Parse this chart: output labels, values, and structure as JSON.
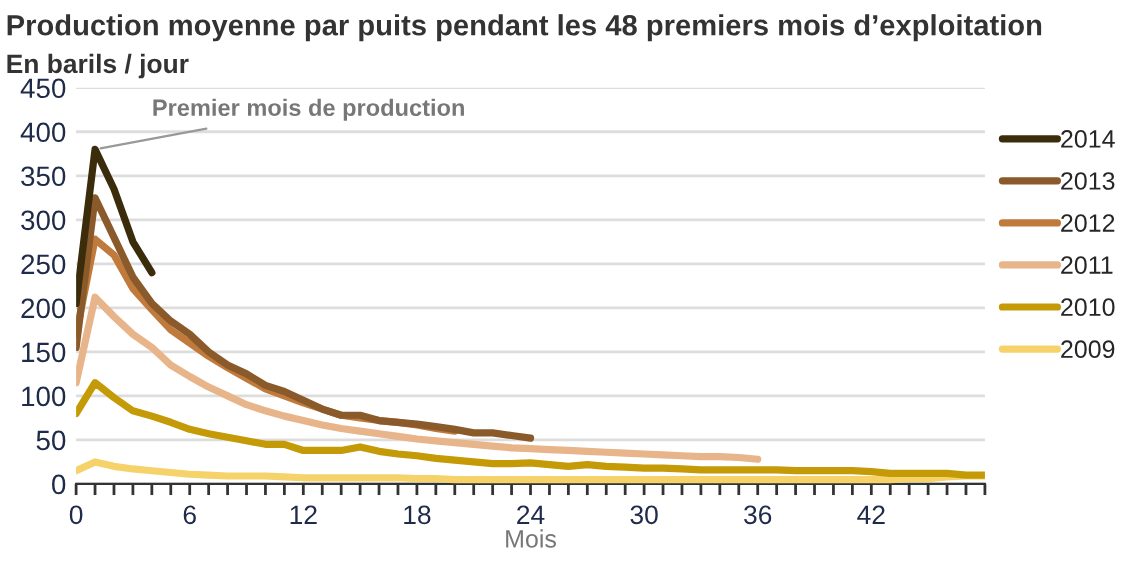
{
  "chart_data": {
    "type": "line",
    "title": "Production moyenne par puits pendant les 48 premiers mois d’exploitation",
    "subtitle": "En barils / jour",
    "xlabel": "Mois",
    "annotations": [
      {
        "text": "Premier mois de production",
        "x": 1,
        "y": 380
      }
    ],
    "series": [
      {
        "name": "2014",
        "color": "#3b2c0c",
        "x": [
          0,
          1,
          2,
          3,
          4
        ],
        "values": [
          205,
          380,
          335,
          275,
          240
        ]
      },
      {
        "name": "2013",
        "color": "#8b5a2b",
        "x": [
          0,
          1,
          2,
          3,
          4,
          5,
          6,
          7,
          8,
          9,
          10,
          11,
          12,
          13,
          14,
          15,
          16,
          17,
          18,
          19,
          20,
          21,
          22,
          23,
          24
        ],
        "values": [
          155,
          325,
          280,
          235,
          205,
          185,
          170,
          150,
          135,
          125,
          112,
          105,
          95,
          85,
          78,
          78,
          72,
          70,
          68,
          65,
          62,
          58,
          58,
          55,
          52
        ]
      },
      {
        "name": "2012",
        "color": "#c07a3c",
        "x": [
          0,
          1,
          2,
          3,
          4,
          5,
          6,
          7,
          8,
          9,
          10,
          11,
          12,
          13,
          14,
          15,
          16,
          17,
          18,
          19,
          20
        ],
        "values": [
          170,
          278,
          260,
          222,
          198,
          175,
          160,
          145,
          132,
          120,
          108,
          100,
          92,
          85,
          78,
          75,
          72,
          70,
          67,
          63,
          60
        ]
      },
      {
        "name": "2011",
        "color": "#e8b48a",
        "x": [
          0,
          1,
          2,
          3,
          4,
          5,
          6,
          7,
          8,
          9,
          10,
          11,
          12,
          13,
          14,
          15,
          16,
          17,
          18,
          19,
          20,
          21,
          22,
          23,
          24,
          25,
          26,
          27,
          28,
          29,
          30,
          31,
          32,
          33,
          34,
          35,
          36
        ],
        "values": [
          115,
          212,
          190,
          170,
          155,
          135,
          122,
          110,
          100,
          90,
          83,
          77,
          72,
          67,
          63,
          60,
          57,
          54,
          51,
          49,
          47,
          45,
          43,
          41,
          40,
          39,
          38,
          37,
          36,
          35,
          34,
          33,
          32,
          31,
          31,
          30,
          28
        ]
      },
      {
        "name": "2010",
        "color": "#c49a06",
        "x": [
          0,
          1,
          2,
          3,
          4,
          5,
          6,
          7,
          8,
          9,
          10,
          11,
          12,
          13,
          14,
          15,
          16,
          17,
          18,
          19,
          20,
          21,
          22,
          23,
          24,
          25,
          26,
          27,
          28,
          29,
          30,
          31,
          32,
          33,
          34,
          35,
          36,
          37,
          38,
          39,
          40,
          41,
          42,
          43,
          44,
          45,
          46,
          47,
          48
        ],
        "values": [
          80,
          115,
          98,
          83,
          77,
          70,
          62,
          57,
          53,
          49,
          45,
          45,
          38,
          38,
          38,
          42,
          37,
          34,
          32,
          29,
          27,
          25,
          23,
          23,
          24,
          22,
          20,
          22,
          20,
          19,
          18,
          18,
          17,
          16,
          16,
          16,
          16,
          16,
          15,
          15,
          15,
          15,
          14,
          12,
          12,
          12,
          12,
          10,
          10
        ]
      },
      {
        "name": "2009",
        "color": "#f5d36a",
        "x": [
          0,
          1,
          2,
          3,
          4,
          5,
          6,
          7,
          8,
          9,
          10,
          11,
          12,
          13,
          14,
          15,
          16,
          17,
          18,
          19,
          20,
          21,
          22,
          23,
          24,
          25,
          26,
          27,
          28,
          29,
          30,
          31,
          32,
          33,
          34,
          35,
          36,
          37,
          38,
          39,
          40,
          41,
          42,
          43,
          44,
          45,
          46,
          47,
          48
        ],
        "values": [
          15,
          25,
          20,
          17,
          15,
          13,
          11,
          10,
          9,
          9,
          9,
          8,
          7,
          7,
          7,
          7,
          7,
          7,
          6,
          6,
          5,
          5,
          5,
          5,
          5,
          5,
          5,
          5,
          5,
          5,
          5,
          5,
          5,
          5,
          5,
          5,
          5,
          5,
          5,
          5,
          5,
          5,
          5,
          5,
          6,
          6,
          8,
          9,
          9
        ]
      }
    ],
    "xlim": [
      0,
      48
    ],
    "xticks": [
      0,
      {
        "value": 1,
        "label": null
      },
      {
        "value": 2,
        "label": null
      },
      {
        "value": 3,
        "label": null
      },
      {
        "value": 4,
        "label": null
      },
      {
        "value": 5,
        "label": null
      },
      6,
      {
        "value": 7,
        "label": null
      },
      {
        "value": 8,
        "label": null
      },
      {
        "value": 9,
        "label": null
      },
      {
        "value": 10,
        "label": null
      },
      {
        "value": 11,
        "label": null
      },
      12,
      {
        "value": 13,
        "label": null
      },
      {
        "value": 14,
        "label": null
      },
      {
        "value": 15,
        "label": null
      },
      {
        "value": 16,
        "label": null
      },
      {
        "value": 17,
        "label": null
      },
      18,
      {
        "value": 19,
        "label": null
      },
      {
        "value": 20,
        "label": null
      },
      {
        "value": 21,
        "label": null
      },
      {
        "value": 22,
        "label": null
      },
      {
        "value": 23,
        "label": null
      },
      24,
      {
        "value": 25,
        "label": null
      },
      {
        "value": 26,
        "label": null
      },
      {
        "value": 27,
        "label": null
      },
      {
        "value": 28,
        "label": null
      },
      {
        "value": 29,
        "label": null
      },
      30,
      {
        "value": 31,
        "label": null
      },
      {
        "value": 32,
        "label": null
      },
      {
        "value": 33,
        "label": null
      },
      {
        "value": 34,
        "label": null
      },
      {
        "value": 35,
        "label": null
      },
      36,
      {
        "value": 37,
        "label": null
      },
      {
        "value": 38,
        "label": null
      },
      {
        "value": 39,
        "label": null
      },
      {
        "value": 40,
        "label": null
      },
      {
        "value": 41,
        "label": null
      },
      42,
      {
        "value": 43,
        "label": null
      },
      {
        "value": 44,
        "label": null
      },
      {
        "value": 45,
        "label": null
      },
      {
        "value": 46,
        "label": null
      },
      {
        "value": 47,
        "label": null
      },
      {
        "value": 48,
        "label": null
      }
    ],
    "ylim": [
      0,
      450
    ],
    "yticks": [
      0,
      50,
      100,
      150,
      200,
      250,
      300,
      350,
      400,
      450
    ],
    "grid": "y",
    "legend": "right",
    "marker": "none",
    "line_style": "solid"
  }
}
